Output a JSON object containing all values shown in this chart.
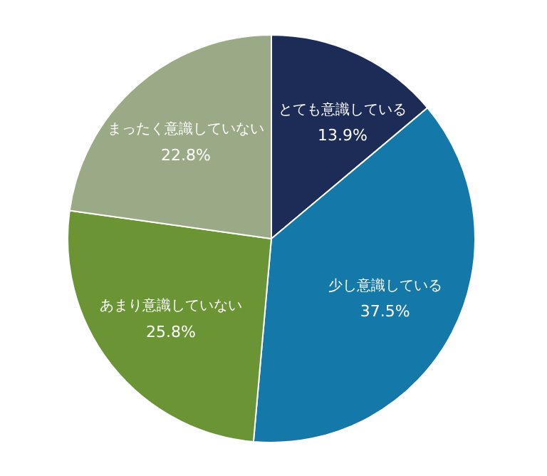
{
  "chart_data": {
    "type": "pie",
    "categories": [
      "とても意識している",
      "少し意識している",
      "あまり意識していない",
      "まったく意識していない"
    ],
    "values": [
      13.9,
      37.5,
      25.8,
      22.8
    ],
    "value_labels": [
      "13.9%",
      "37.5%",
      "25.8%",
      "22.8%"
    ],
    "colors": [
      "#1d2b57",
      "#1479a8",
      "#6b9535",
      "#9aaa86"
    ]
  }
}
